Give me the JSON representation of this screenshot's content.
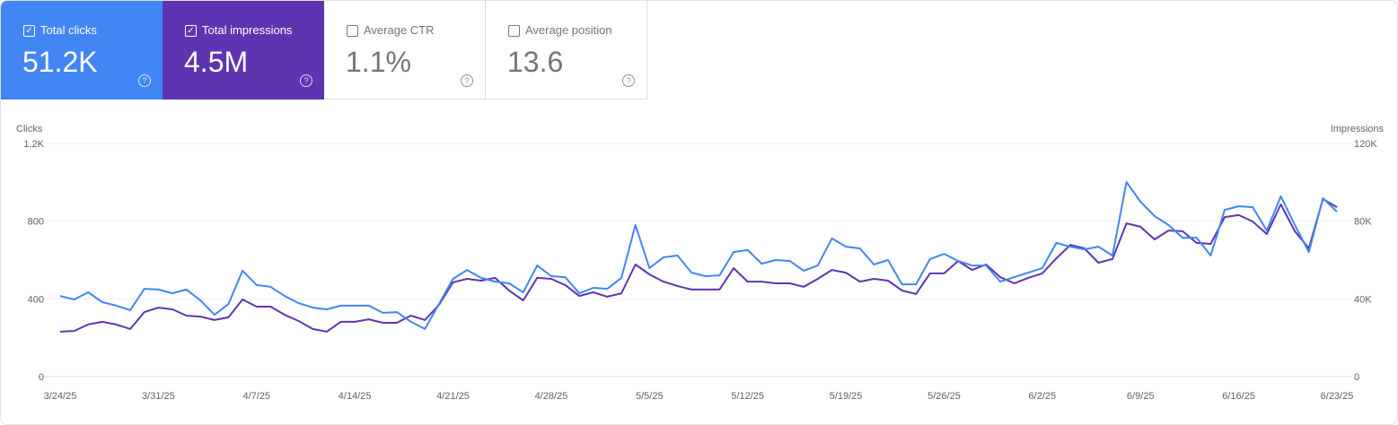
{
  "cards": [
    {
      "label": "Total clicks",
      "value": "51.2K",
      "checked": true,
      "color": "#4285f4"
    },
    {
      "label": "Total impressions",
      "value": "4.5M",
      "checked": true,
      "color": "#5e35b1"
    },
    {
      "label": "Average CTR",
      "value": "1.1%",
      "checked": false
    },
    {
      "label": "Average position",
      "value": "13.6",
      "checked": false
    }
  ],
  "chart_data": {
    "type": "line",
    "ylabel": "Clicks",
    "y2label": "Impressions",
    "ylim": [
      0,
      1200
    ],
    "y2lim": [
      0,
      120000
    ],
    "yticks": [
      "0",
      "400",
      "800",
      "1.2K"
    ],
    "y2ticks": [
      "0",
      "40K",
      "80K",
      "120K"
    ],
    "xticks": [
      "3/24/25",
      "3/31/25",
      "4/7/25",
      "4/14/25",
      "4/21/25",
      "4/28/25",
      "5/5/25",
      "5/12/25",
      "5/19/25",
      "5/26/25",
      "6/2/25",
      "6/9/25",
      "6/16/25",
      "6/23/25"
    ],
    "grid": true,
    "x": [
      "3/24/25",
      "3/25/25",
      "3/26/25",
      "3/27/25",
      "3/28/25",
      "3/29/25",
      "3/30/25",
      "3/31/25",
      "4/1/25",
      "4/2/25",
      "4/3/25",
      "4/4/25",
      "4/5/25",
      "4/6/25",
      "4/7/25",
      "4/8/25",
      "4/9/25",
      "4/10/25",
      "4/11/25",
      "4/12/25",
      "4/13/25",
      "4/14/25",
      "4/15/25",
      "4/16/25",
      "4/17/25",
      "4/18/25",
      "4/19/25",
      "4/20/25",
      "4/21/25",
      "4/22/25",
      "4/23/25",
      "4/24/25",
      "4/25/25",
      "4/26/25",
      "4/27/25",
      "4/28/25",
      "4/29/25",
      "4/30/25",
      "5/1/25",
      "5/2/25",
      "5/3/25",
      "5/4/25",
      "5/5/25",
      "5/6/25",
      "5/7/25",
      "5/8/25",
      "5/9/25",
      "5/10/25",
      "5/11/25",
      "5/12/25",
      "5/13/25",
      "5/14/25",
      "5/15/25",
      "5/16/25",
      "5/17/25",
      "5/18/25",
      "5/19/25",
      "5/20/25",
      "5/21/25",
      "5/22/25",
      "5/23/25",
      "5/24/25",
      "5/25/25",
      "5/26/25",
      "5/27/25",
      "5/28/25",
      "5/29/25",
      "5/30/25",
      "5/31/25",
      "6/1/25",
      "6/2/25",
      "6/3/25",
      "6/4/25",
      "6/5/25",
      "6/6/25",
      "6/7/25",
      "6/8/25",
      "6/9/25",
      "6/10/25",
      "6/11/25",
      "6/12/25",
      "6/13/25",
      "6/14/25",
      "6/15/25",
      "6/16/25",
      "6/17/25",
      "6/18/25",
      "6/19/25",
      "6/20/25",
      "6/21/25",
      "6/22/25",
      "6/23/25"
    ],
    "series": [
      {
        "name": "Clicks",
        "axis": "left",
        "color": "#4285f4",
        "values": [
          415,
          397,
          434,
          383,
          365,
          342,
          452,
          448,
          429,
          448,
          392,
          318,
          374,
          545,
          471,
          462,
          415,
          378,
          355,
          346,
          365,
          365,
          365,
          328,
          332,
          282,
          245,
          374,
          503,
          549,
          508,
          489,
          480,
          434,
          572,
          517,
          512,
          429,
          457,
          452,
          508,
          780,
          558,
          614,
          623,
          535,
          517,
          521,
          641,
          651,
          581,
          600,
          595,
          545,
          572,
          711,
          669,
          660,
          577,
          600,
          475,
          475,
          605,
          632,
          595,
          572,
          572,
          489,
          512,
          535,
          558,
          688,
          669,
          655,
          669,
          623,
          1001,
          900,
          826,
          780,
          715,
          715,
          623,
          858,
          877,
          872,
          752,
          928,
          780,
          641,
          918,
          849
        ]
      },
      {
        "name": "Impressions",
        "axis": "right",
        "color": "#5e35b1",
        "values": [
          23100,
          23500,
          26800,
          28200,
          26800,
          24500,
          33200,
          35500,
          34600,
          31400,
          30900,
          29100,
          30500,
          39700,
          36000,
          36000,
          31800,
          28600,
          24500,
          23100,
          28200,
          28200,
          29500,
          27700,
          27700,
          31400,
          29100,
          36900,
          48500,
          50300,
          49400,
          50800,
          44300,
          39200,
          50800,
          50300,
          47100,
          41500,
          43400,
          41100,
          42900,
          57700,
          52600,
          48900,
          46600,
          44800,
          44800,
          44800,
          55800,
          48900,
          48900,
          48000,
          48000,
          46200,
          50300,
          54900,
          53500,
          48900,
          50300,
          49400,
          44300,
          42500,
          53100,
          53100,
          59500,
          54900,
          57700,
          51200,
          48000,
          50800,
          53100,
          60900,
          67800,
          66000,
          58600,
          60500,
          78900,
          77100,
          70600,
          75200,
          74800,
          68800,
          68300,
          82100,
          83100,
          79800,
          73400,
          88600,
          74800,
          66000,
          91400,
          87200
        ]
      }
    ]
  }
}
